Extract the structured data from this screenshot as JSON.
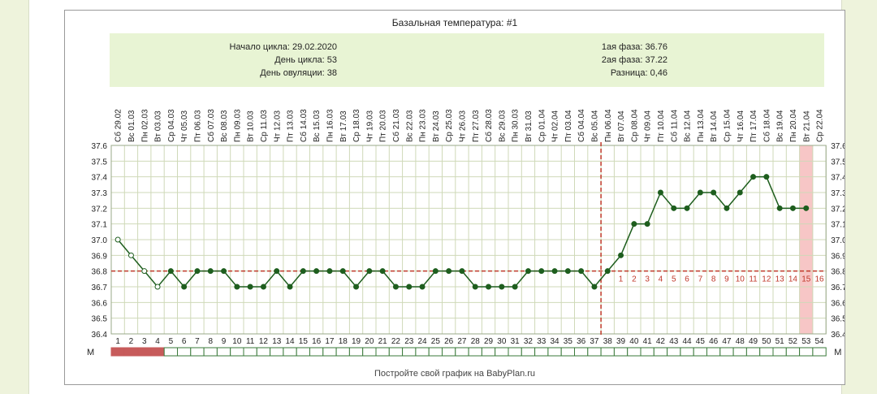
{
  "chart_data": {
    "type": "line",
    "title": "Базальная температура: #1",
    "info": {
      "cycle_start": "Начало цикла: 29.02.2020",
      "cycle_day": "День цикла: 53",
      "ovulation_day": "День овуляции: 38",
      "phase1": "1ая фаза: 36.76",
      "phase2": "2ая фаза: 37.22",
      "difference": "Разница: 0,46"
    },
    "dates": [
      "Сб 29.02",
      "Вс 01.03",
      "Пн 02.03",
      "Вт 03.03",
      "Ср 04.03",
      "Чт 05.03",
      "Пт 06.03",
      "Сб 07.03",
      "Вс 08.03",
      "Пн 09.03",
      "Вт 10.03",
      "Ср 11.03",
      "Чт 12.03",
      "Пт 13.03",
      "Сб 14.03",
      "Вс 15.03",
      "Пн 16.03",
      "Вт 17.03",
      "Ср 18.03",
      "Чт 19.03",
      "Пт 20.03",
      "Сб 21.03",
      "Вс 22.03",
      "Пн 23.03",
      "Вт 24.03",
      "Ср 25.03",
      "Чт 26.03",
      "Пт 27.03",
      "Сб 28.03",
      "Вс 29.03",
      "Пн 30.03",
      "Вт 31.03",
      "Ср 01.04",
      "Чт 02.04",
      "Пт 03.04",
      "Сб 04.04",
      "Вс 05.04",
      "Пн 06.04",
      "Вт 07.04",
      "Ср 08.04",
      "Чт 09.04",
      "Пт 10.04",
      "Сб 11.04",
      "Вс 12.04",
      "Пн 13.04",
      "Вт 14.04",
      "Ср 15.04",
      "Чт 16.04",
      "Пт 17.04",
      "Сб 18.04",
      "Вс 19.04",
      "Пн 20.04",
      "Вт 21.04",
      "Ср 22.04"
    ],
    "days": [
      1,
      2,
      3,
      4,
      5,
      6,
      7,
      8,
      9,
      10,
      11,
      12,
      13,
      14,
      15,
      16,
      17,
      18,
      19,
      20,
      21,
      22,
      23,
      24,
      25,
      26,
      27,
      28,
      29,
      30,
      31,
      32,
      33,
      34,
      35,
      36,
      37,
      38,
      39,
      40,
      41,
      42,
      43,
      44,
      45,
      46,
      47,
      48,
      49,
      50,
      51,
      52,
      53,
      54
    ],
    "temperatures": [
      37.0,
      36.9,
      36.8,
      36.7,
      36.8,
      36.7,
      36.8,
      36.8,
      36.8,
      36.7,
      36.7,
      36.7,
      36.8,
      36.7,
      36.8,
      36.8,
      36.8,
      36.8,
      36.7,
      36.8,
      36.8,
      36.7,
      36.7,
      36.7,
      36.8,
      36.8,
      36.8,
      36.7,
      36.7,
      36.7,
      36.7,
      36.8,
      36.8,
      36.8,
      36.8,
      36.8,
      36.7,
      36.8,
      36.9,
      37.1,
      37.1,
      37.3,
      37.2,
      37.2,
      37.3,
      37.3,
      37.2,
      37.3,
      37.4,
      37.4,
      37.2,
      37.2,
      37.2,
      null
    ],
    "open_markers_days": [
      1,
      2,
      3,
      4
    ],
    "y_ticks": [
      "36.4",
      "36.5",
      "36.6",
      "36.7",
      "36.8",
      "36.9",
      "37.0",
      "37.1",
      "37.2",
      "37.3",
      "37.4",
      "37.5",
      "37.6"
    ],
    "ylim": [
      36.4,
      37.6
    ],
    "coverline": 36.8,
    "ovulation_line_after_day": 37,
    "luteal_numbers": [
      "1",
      "2",
      "3",
      "4",
      "5",
      "6",
      "7",
      "8",
      "9",
      "10",
      "11",
      "12",
      "13",
      "14",
      "15",
      "16"
    ],
    "luteal_start_day": 39,
    "today_day": 53,
    "menstruation_label": "М",
    "menstruation_days": [
      1,
      2,
      3,
      4
    ],
    "colors": {
      "line": "#1e5e1e",
      "marker": "#1e5e1e",
      "coverline": "#c0392b",
      "ovulation_line": "#c0392b",
      "today_highlight": "#f7c6c6",
      "menstruation_fill": "#c75b5b",
      "grid": "#cfd9b8",
      "luteal_number": "#c0392b"
    },
    "grid": true
  },
  "footer_note": "Постройте свой график на BabyPlan.ru"
}
